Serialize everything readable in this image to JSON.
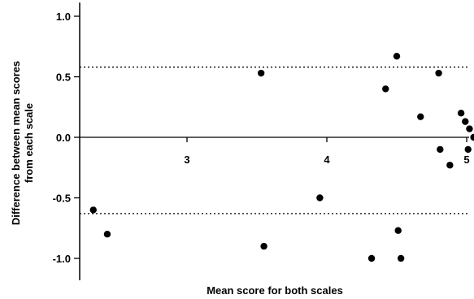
{
  "chart_data": {
    "type": "scatter",
    "title": "",
    "xlabel": "Mean score for both scales",
    "ylabel_lines": [
      "Difference between mean scores",
      "from each scale"
    ],
    "xlim": [
      2.1,
      5.05
    ],
    "ylim": [
      -1.1,
      1.1
    ],
    "x_ticks": [
      3,
      4,
      5
    ],
    "x_tick_labels": [
      "3",
      "4",
      "5"
    ],
    "y_ticks": [
      1.0,
      0.5,
      0.0,
      -0.5,
      -1.0
    ],
    "y_tick_labels": [
      "1.0",
      "0.5",
      "0.0",
      "-0.5",
      "-1.0"
    ],
    "reference_lines": {
      "zero_line": 0.0,
      "limits_of_agreement": [
        0.58,
        -0.63
      ]
    },
    "grid": false,
    "legend": "none",
    "marker_color": "#000000",
    "points": [
      {
        "x": 2.33,
        "y": -0.6
      },
      {
        "x": 2.43,
        "y": -0.8
      },
      {
        "x": 3.53,
        "y": 0.53
      },
      {
        "x": 3.55,
        "y": -0.9
      },
      {
        "x": 3.95,
        "y": -0.5
      },
      {
        "x": 4.32,
        "y": -1.0
      },
      {
        "x": 4.42,
        "y": 0.4
      },
      {
        "x": 4.5,
        "y": 0.67
      },
      {
        "x": 4.51,
        "y": -0.77
      },
      {
        "x": 4.53,
        "y": -1.0
      },
      {
        "x": 4.67,
        "y": 0.17
      },
      {
        "x": 4.8,
        "y": 0.53
      },
      {
        "x": 4.81,
        "y": -0.1
      },
      {
        "x": 4.88,
        "y": -0.23
      },
      {
        "x": 4.96,
        "y": 0.2
      },
      {
        "x": 4.99,
        "y": 0.13
      },
      {
        "x": 5.01,
        "y": -0.1
      },
      {
        "x": 5.02,
        "y": 0.07
      },
      {
        "x": 5.05,
        "y": 0.0
      }
    ]
  }
}
